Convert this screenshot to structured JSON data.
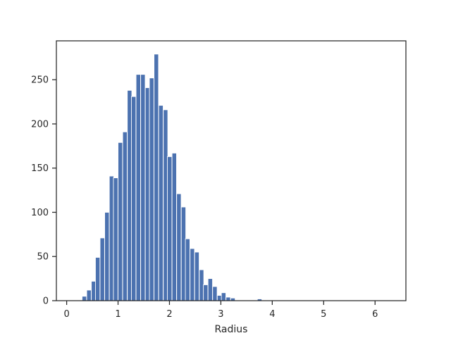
{
  "chart_data": {
    "type": "bar",
    "title": "",
    "xlabel": "Radius",
    "ylabel": "",
    "xlim": [
      -0.2,
      6.6
    ],
    "ylim": [
      0,
      294
    ],
    "grid": false,
    "bar_color": "#4c72b0",
    "xticks": [
      0,
      1,
      2,
      3,
      4,
      5,
      6
    ],
    "yticks": [
      0,
      50,
      100,
      150,
      200,
      250
    ],
    "bin_width": 0.0875,
    "bins": [
      {
        "x": 0.3,
        "value": 5
      },
      {
        "x": 0.39,
        "value": 12
      },
      {
        "x": 0.48,
        "value": 22
      },
      {
        "x": 0.56,
        "value": 49
      },
      {
        "x": 0.65,
        "value": 71
      },
      {
        "x": 0.74,
        "value": 100
      },
      {
        "x": 0.83,
        "value": 141
      },
      {
        "x": 0.91,
        "value": 139
      },
      {
        "x": 1.0,
        "value": 179
      },
      {
        "x": 1.09,
        "value": 191
      },
      {
        "x": 1.18,
        "value": 238
      },
      {
        "x": 1.26,
        "value": 231
      },
      {
        "x": 1.35,
        "value": 256
      },
      {
        "x": 1.44,
        "value": 256
      },
      {
        "x": 1.53,
        "value": 241
      },
      {
        "x": 1.61,
        "value": 252
      },
      {
        "x": 1.7,
        "value": 279
      },
      {
        "x": 1.79,
        "value": 221
      },
      {
        "x": 1.88,
        "value": 216
      },
      {
        "x": 1.96,
        "value": 163
      },
      {
        "x": 2.05,
        "value": 167
      },
      {
        "x": 2.14,
        "value": 121
      },
      {
        "x": 2.23,
        "value": 106
      },
      {
        "x": 2.31,
        "value": 70
      },
      {
        "x": 2.4,
        "value": 59
      },
      {
        "x": 2.49,
        "value": 55
      },
      {
        "x": 2.58,
        "value": 35
      },
      {
        "x": 2.66,
        "value": 18
      },
      {
        "x": 2.75,
        "value": 25
      },
      {
        "x": 2.84,
        "value": 16
      },
      {
        "x": 2.93,
        "value": 6
      },
      {
        "x": 3.01,
        "value": 9
      },
      {
        "x": 3.1,
        "value": 4
      },
      {
        "x": 3.19,
        "value": 3
      },
      {
        "x": 3.71,
        "value": 2
      }
    ]
  }
}
